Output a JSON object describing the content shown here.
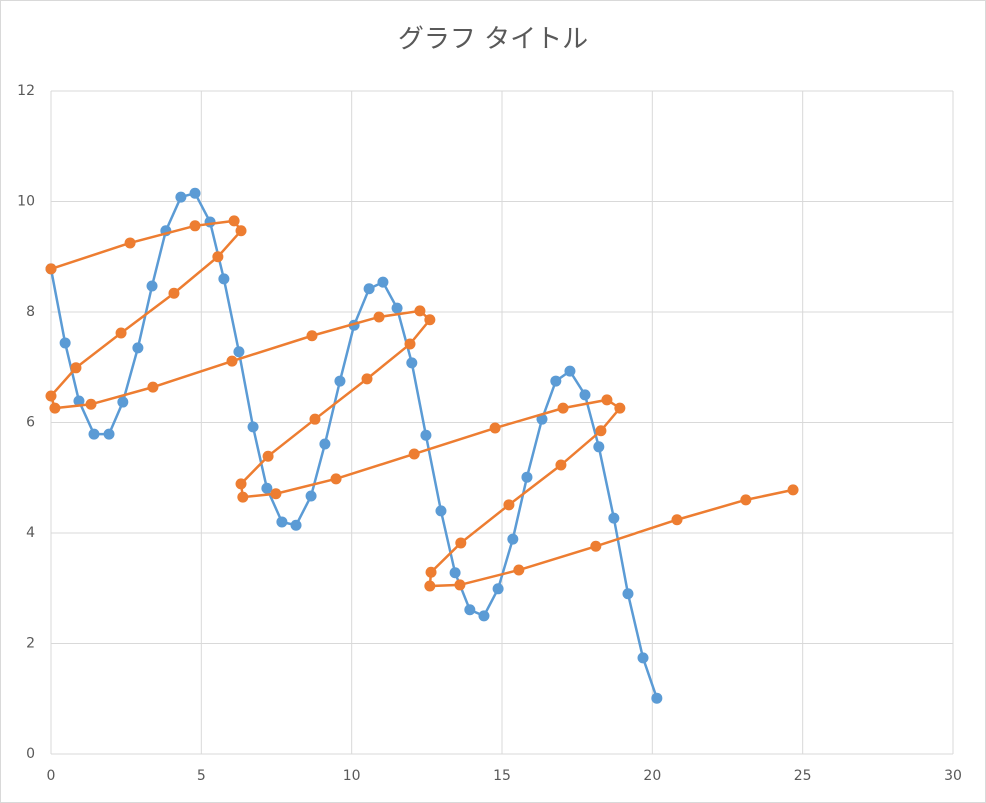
{
  "chart_data": {
    "type": "scatter",
    "title": "グラフ タイトル",
    "xlim": [
      0,
      30
    ],
    "xticks": [
      0,
      5,
      10,
      15,
      20,
      25,
      30
    ],
    "ylim": [
      0,
      12
    ],
    "yticks": [
      0,
      2,
      4,
      6,
      8,
      10,
      12
    ],
    "grid": true,
    "series": [
      {
        "color": "#5b9bd5",
        "x": [
          0,
          0.47,
          0.93,
          1.43,
          1.93,
          2.39,
          2.89,
          3.36,
          3.82,
          4.32,
          4.79,
          5.29,
          5.75,
          6.25,
          6.72,
          7.18,
          7.68,
          8.15,
          8.65,
          9.11,
          9.61,
          10.08,
          10.58,
          11.04,
          11.51,
          12.0,
          12.47,
          12.97,
          13.44,
          13.93,
          14.4,
          14.87,
          15.36,
          15.83,
          16.33,
          16.79,
          17.26,
          17.76,
          18.22,
          18.72,
          19.19,
          19.69,
          20.15
        ],
        "values": [
          8.78,
          7.44,
          6.39,
          5.79,
          5.79,
          6.37,
          7.35,
          8.47,
          9.47,
          10.08,
          10.15,
          9.63,
          8.6,
          7.28,
          5.92,
          4.81,
          4.2,
          4.14,
          4.67,
          5.61,
          6.75,
          7.76,
          8.42,
          8.54,
          8.07,
          7.08,
          5.77,
          4.4,
          3.28,
          2.61,
          2.5,
          2.99,
          3.89,
          5.01,
          6.06,
          6.75,
          6.93,
          6.5,
          5.56,
          4.27,
          2.9,
          1.74,
          1.01
        ]
      },
      {
        "color": "#ed7d31",
        "x": [
          0,
          2.63,
          4.79,
          6.09,
          6.32,
          5.55,
          4.09,
          2.33,
          0.83,
          0,
          0.13,
          1.33,
          3.39,
          6.02,
          8.68,
          10.91,
          12.27,
          12.6,
          11.94,
          10.51,
          8.78,
          7.22,
          6.32,
          6.38,
          7.48,
          9.48,
          12.08,
          14.77,
          17.03,
          18.49,
          18.92,
          18.29,
          16.96,
          15.23,
          13.63,
          12.64,
          12.6,
          13.6,
          15.56,
          18.12,
          20.82,
          23.11,
          24.68
        ],
        "values": [
          8.78,
          9.25,
          9.56,
          9.65,
          9.47,
          9.0,
          8.34,
          7.62,
          6.99,
          6.48,
          6.26,
          6.33,
          6.64,
          7.11,
          7.57,
          7.91,
          8.02,
          7.86,
          7.42,
          6.79,
          6.06,
          5.39,
          4.89,
          4.65,
          4.71,
          4.98,
          5.43,
          5.9,
          6.26,
          6.41,
          6.26,
          5.85,
          5.23,
          4.51,
          3.82,
          3.29,
          3.04,
          3.06,
          3.33,
          3.76,
          4.24,
          4.6,
          4.78
        ]
      }
    ]
  }
}
